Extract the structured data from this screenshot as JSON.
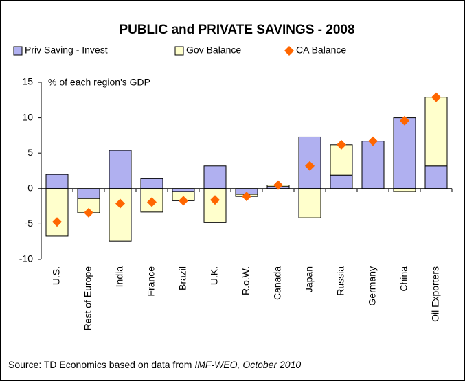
{
  "chart_data": {
    "type": "bar",
    "stacked": true,
    "title": "PUBLIC and PRIVATE SAVINGS - 2008",
    "y_axis_label": "% of each region's GDP",
    "source": "Source: TD Economics based on data from ",
    "source_italic": "IMF-WEO, October 2010",
    "categories": [
      "U.S.",
      "Rest of Europe",
      "India",
      "France",
      "Brazil",
      "U.K.",
      "R.o.W.",
      "Canada",
      "Japan",
      "Russia",
      "Germany",
      "China",
      "Oil Exporters"
    ],
    "series": [
      {
        "name": "Priv Saving - Invest",
        "color": "#b0b0f0",
        "type": "bar",
        "values": [
          2.0,
          -1.4,
          5.4,
          1.4,
          -0.4,
          3.2,
          -0.8,
          0.3,
          7.3,
          1.9,
          6.7,
          10.0,
          3.2
        ]
      },
      {
        "name": "Gov Balance",
        "color": "#ffffcc",
        "type": "bar",
        "values": [
          -6.7,
          -2.0,
          -7.4,
          -3.3,
          -1.3,
          -4.8,
          -0.3,
          0.2,
          -4.1,
          4.3,
          0,
          -0.4,
          9.7
        ]
      },
      {
        "name": "CA Balance",
        "color": "#ff6600",
        "type": "scatter",
        "values": [
          -4.7,
          -3.4,
          -2.1,
          -1.9,
          -1.7,
          -1.6,
          -1.1,
          0.5,
          3.2,
          6.2,
          6.7,
          9.6,
          12.9
        ]
      }
    ],
    "ylim": [
      -10,
      15
    ],
    "yticks": [
      -10,
      -5,
      0,
      5,
      10,
      15
    ],
    "grid": false
  }
}
